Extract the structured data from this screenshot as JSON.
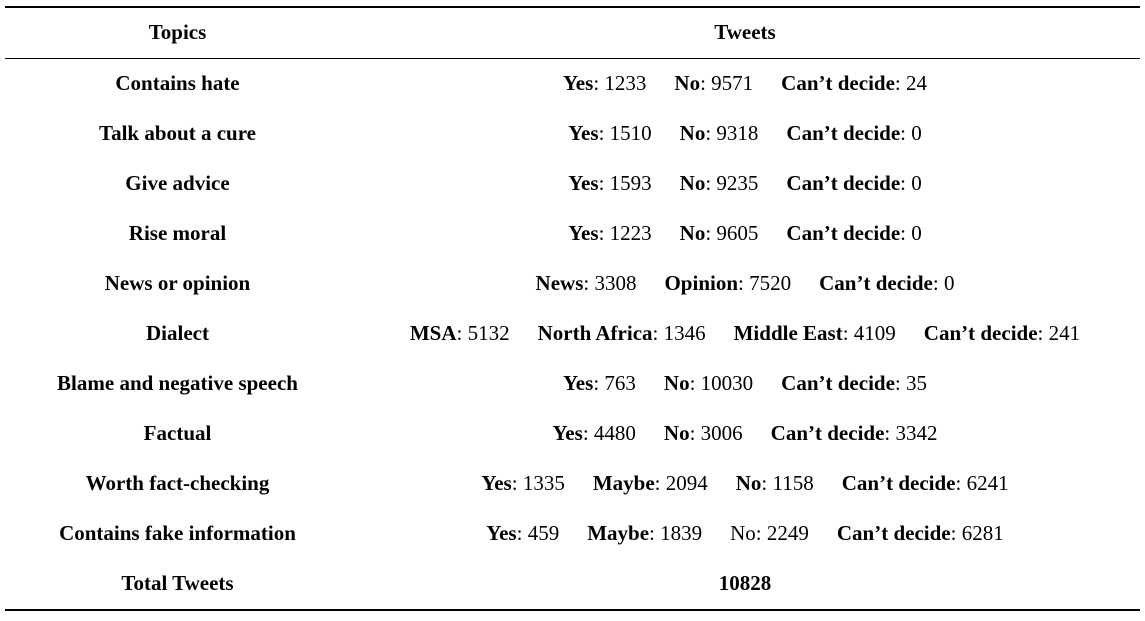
{
  "page": {
    "background_color": "#ffffff",
    "text_color": "#000000",
    "rule_color": "#000000"
  },
  "table": {
    "header": {
      "topics": "Topics",
      "tweets": "Tweets"
    },
    "rows": [
      {
        "topic": "Contains hate",
        "segments": [
          {
            "label": "Yes",
            "value": "1233",
            "bold_label": true
          },
          {
            "label": "No",
            "value": "9571",
            "bold_label": true
          },
          {
            "label": "Can’t decide",
            "value": "24",
            "bold_label": true
          }
        ]
      },
      {
        "topic": "Talk about a cure",
        "segments": [
          {
            "label": "Yes",
            "value": "1510",
            "bold_label": true
          },
          {
            "label": "No",
            "value": "9318",
            "bold_label": true
          },
          {
            "label": "Can’t decide",
            "value": "0",
            "bold_label": true
          }
        ]
      },
      {
        "topic": "Give advice",
        "segments": [
          {
            "label": "Yes",
            "value": "1593",
            "bold_label": true
          },
          {
            "label": "No",
            "value": "9235",
            "bold_label": true
          },
          {
            "label": "Can’t decide",
            "value": "0",
            "bold_label": true
          }
        ]
      },
      {
        "topic": "Rise moral",
        "segments": [
          {
            "label": "Yes",
            "value": "1223",
            "bold_label": true
          },
          {
            "label": "No",
            "value": "9605",
            "bold_label": true
          },
          {
            "label": "Can’t decide",
            "value": "0",
            "bold_label": true
          }
        ]
      },
      {
        "topic": "News or opinion",
        "segments": [
          {
            "label": "News",
            "value": "3308",
            "bold_label": true
          },
          {
            "label": "Opinion",
            "value": "7520",
            "bold_label": true
          },
          {
            "label": "Can’t decide",
            "value": "0",
            "bold_label": true
          }
        ]
      },
      {
        "topic": "Dialect",
        "segments": [
          {
            "label": "MSA",
            "value": "5132",
            "bold_label": true
          },
          {
            "label": "North Africa",
            "value": "1346",
            "bold_label": true
          },
          {
            "label": "Middle East",
            "value": "4109",
            "bold_label": true
          },
          {
            "label": "Can’t decide",
            "value": "241",
            "bold_label": true
          }
        ]
      },
      {
        "topic": "Blame and negative speech",
        "segments": [
          {
            "label": "Yes",
            "value": "763",
            "bold_label": true
          },
          {
            "label": "No",
            "value": "10030",
            "bold_label": true
          },
          {
            "label": "Can’t decide",
            "value": "35",
            "bold_label": true
          }
        ]
      },
      {
        "topic": "Factual",
        "segments": [
          {
            "label": "Yes",
            "value": "4480",
            "bold_label": true
          },
          {
            "label": "No",
            "value": "3006",
            "bold_label": true
          },
          {
            "label": "Can’t decide",
            "value": "3342",
            "bold_label": true
          }
        ]
      },
      {
        "topic": "Worth fact-checking",
        "segments": [
          {
            "label": "Yes",
            "value": "1335",
            "bold_label": true
          },
          {
            "label": "Maybe",
            "value": "2094",
            "bold_label": true
          },
          {
            "label": "No",
            "value": "1158",
            "bold_label": true
          },
          {
            "label": "Can’t decide",
            "value": "6241",
            "bold_label": true
          }
        ]
      },
      {
        "topic": "Contains fake information",
        "segments": [
          {
            "label": "Yes",
            "value": "459",
            "bold_label": true
          },
          {
            "label": "Maybe",
            "value": "1839",
            "bold_label": true
          },
          {
            "label": "No",
            "value": "2249",
            "bold_label": false
          },
          {
            "label": "Can’t decide",
            "value": "6281",
            "bold_label": true
          }
        ]
      }
    ],
    "total": {
      "topic": "Total Tweets",
      "value": "10828"
    }
  }
}
